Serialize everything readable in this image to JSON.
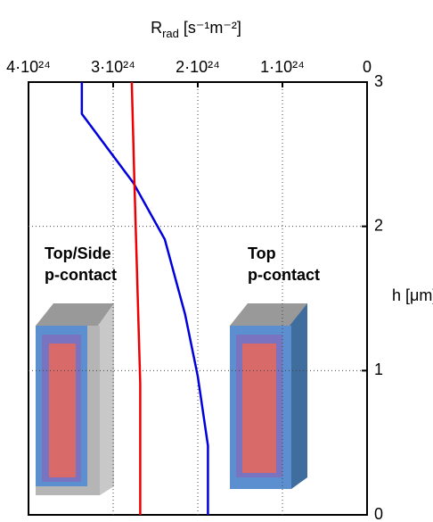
{
  "chart_data": {
    "type": "line",
    "x_label": {
      "main": "R",
      "sub": "rad",
      "rest": " [s⁻¹m⁻²]"
    },
    "y_label": "h [μm]",
    "xlim": [
      4e+24,
      0
    ],
    "xticks": [
      {
        "value": 4e+24,
        "label": "4·10²⁴"
      },
      {
        "value": 3e+24,
        "label": "3·10²⁴"
      },
      {
        "value": 2e+24,
        "label": "2·10²⁴"
      },
      {
        "value": 1e+24,
        "label": "1·10²⁴"
      },
      0
    ],
    "ylim": [
      0,
      3
    ],
    "yticks": [
      0,
      1,
      2,
      3
    ],
    "grid": true,
    "series": [
      {
        "color": "#0000dd",
        "values": [
          3.37e+24,
          3.37e+24,
          2.76e+24,
          2.39e+24,
          2.15e+24,
          2e+24,
          1.88e+24,
          1.88e+24
        ],
        "h": [
          3,
          2.78,
          2.3,
          1.91,
          1.39,
          0.96,
          0.48,
          0
        ]
      },
      {
        "color": "#ee0000",
        "values": [
          2.78e+24,
          2.75e+24,
          2.68e+24,
          2.68e+24
        ],
        "h": [
          3,
          2.33,
          0.91,
          0
        ]
      }
    ],
    "annotations": [
      {
        "lines": [
          "Top/Side",
          "p-contact"
        ],
        "color": "#ee0000"
      },
      {
        "lines": [
          "Top",
          "p-contact"
        ],
        "color": "#0000dd"
      }
    ]
  }
}
